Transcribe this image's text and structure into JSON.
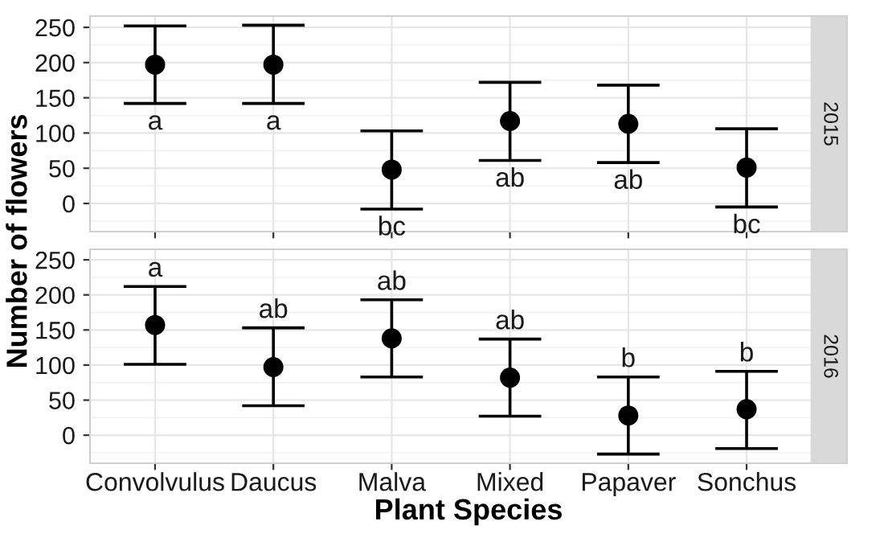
{
  "chart_data": [
    {
      "type": "scatter",
      "title": "2015",
      "ylabel": "Number of flowers",
      "categories": [
        "Convolvulus",
        "Daucus",
        "Malva",
        "Mixed",
        "Papaver",
        "Sonchus"
      ],
      "series": [
        {
          "color": "#000000",
          "values": [
            197,
            197,
            48,
            117,
            113,
            51
          ],
          "errors": [
            [
              142,
              252
            ],
            [
              142,
              253
            ],
            [
              -8,
              103
            ],
            [
              61,
              172
            ],
            [
              58,
              168
            ],
            [
              -5,
              106
            ]
          ]
        }
      ],
      "ylim": [
        -40,
        266
      ],
      "yticks": [
        0,
        50,
        100,
        150,
        200,
        250
      ],
      "grid": true,
      "marker": "circle",
      "tick_labels": "y",
      "annotations": [
        {
          "text": "a",
          "x": "Convolvulus",
          "y": 142
        },
        {
          "text": "a",
          "x": "Daucus",
          "y": 142
        },
        {
          "text": "bc",
          "x": "Malva",
          "y": -8
        },
        {
          "text": "ab",
          "x": "Mixed",
          "y": 61
        },
        {
          "text": "ab",
          "x": "Papaver",
          "y": 58
        },
        {
          "text": "bc",
          "x": "Sonchus",
          "y": -5
        }
      ]
    },
    {
      "type": "scatter",
      "title": "2016",
      "xlabel": "Plant Species",
      "categories": [
        "Convolvulus",
        "Daucus",
        "Malva",
        "Mixed",
        "Papaver",
        "Sonchus"
      ],
      "series": [
        {
          "color": "#000000",
          "values": [
            157,
            97,
            138,
            82,
            28,
            37
          ],
          "errors": [
            [
              101,
              212
            ],
            [
              42,
              153
            ],
            [
              83,
              193
            ],
            [
              27,
              137
            ],
            [
              -27,
              83
            ],
            [
              -19,
              91
            ]
          ]
        }
      ],
      "ylim": [
        -40,
        265
      ],
      "yticks": [
        0,
        50,
        100,
        150,
        200,
        250
      ],
      "grid": true,
      "marker": "circle",
      "annotations": [
        {
          "text": "a",
          "x": "Convolvulus",
          "y": 212
        },
        {
          "text": "ab",
          "x": "Daucus",
          "y": 153
        },
        {
          "text": "ab",
          "x": "Malva",
          "y": 193
        },
        {
          "text": "ab",
          "x": "Mixed",
          "y": 137
        },
        {
          "text": "b",
          "x": "Papaver",
          "y": 83
        },
        {
          "text": "b",
          "x": "Sonchus",
          "y": 91
        }
      ]
    }
  ]
}
